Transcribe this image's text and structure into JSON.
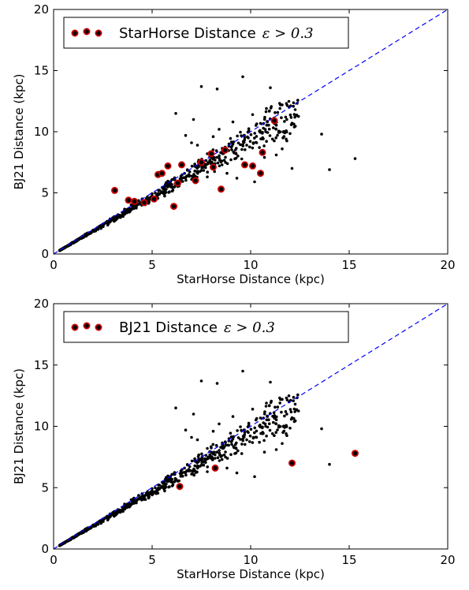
{
  "chart_data": [
    {
      "type": "scatter",
      "xlabel": "StarHorse Distance (kpc)",
      "ylabel": "BJ21 Distance (kpc)",
      "xlim": [
        0,
        20
      ],
      "ylim": [
        0,
        20
      ],
      "xticks": [
        "0",
        "5",
        "10",
        "15",
        "20"
      ],
      "yticks": [
        "0",
        "5",
        "10",
        "15",
        "20"
      ],
      "reference_line": {
        "style": "dashed",
        "color": "#0000ff",
        "from": [
          0,
          0
        ],
        "to": [
          20,
          20
        ]
      },
      "legend": {
        "label": "StarHorse Distance",
        "math": "ε > 0.3",
        "placement": "top-left"
      },
      "highlight_color": "#cc0000",
      "series": [
        {
          "name": "StarHorse Distance ε > 0.3",
          "points": [
            [
              3.1,
              5.2
            ],
            [
              3.8,
              4.4
            ],
            [
              4.1,
              4.3
            ],
            [
              4.6,
              4.2
            ],
            [
              5.1,
              4.5
            ],
            [
              5.3,
              6.5
            ],
            [
              5.5,
              6.6
            ],
            [
              5.8,
              7.2
            ],
            [
              6.1,
              3.9
            ],
            [
              6.3,
              5.8
            ],
            [
              6.5,
              7.3
            ],
            [
              7.2,
              6.0
            ],
            [
              7.5,
              7.5
            ],
            [
              8.1,
              7.1
            ],
            [
              8.5,
              5.3
            ],
            [
              8.7,
              8.5
            ],
            [
              9.7,
              7.3
            ],
            [
              10.1,
              7.2
            ],
            [
              10.5,
              6.6
            ],
            [
              10.6,
              8.3
            ],
            [
              11.2,
              10.9
            ],
            [
              8.0,
              8.2
            ]
          ]
        }
      ]
    },
    {
      "type": "scatter",
      "xlabel": "StarHorse Distance (kpc)",
      "ylabel": "BJ21 Distance (kpc)",
      "xlim": [
        0,
        20
      ],
      "ylim": [
        0,
        20
      ],
      "xticks": [
        "0",
        "5",
        "10",
        "15",
        "20"
      ],
      "yticks": [
        "0",
        "5",
        "10",
        "15",
        "20"
      ],
      "reference_line": {
        "style": "dashed",
        "color": "#0000ff",
        "from": [
          0,
          0
        ],
        "to": [
          20,
          20
        ]
      },
      "legend": {
        "label": "BJ21 Distance",
        "math": "ε > 0.3",
        "placement": "top-left"
      },
      "highlight_color": "#cc0000",
      "series": [
        {
          "name": "BJ21 Distance ε > 0.3",
          "points": [
            [
              6.4,
              5.1
            ],
            [
              8.2,
              6.6
            ],
            [
              12.1,
              7.0
            ],
            [
              15.3,
              7.8
            ]
          ]
        }
      ]
    }
  ]
}
